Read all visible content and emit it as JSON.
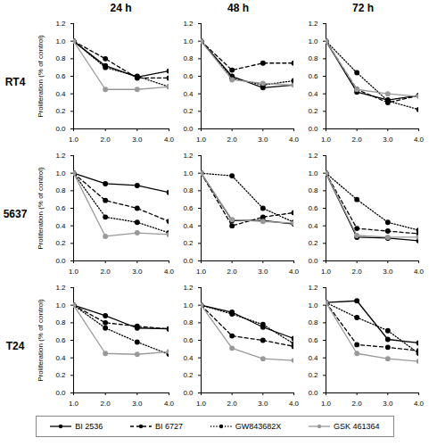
{
  "column_titles": [
    "24 h",
    "48 h",
    "72 h"
  ],
  "row_titles": [
    "RT4",
    "5637",
    "T24"
  ],
  "legend": "bottom",
  "chart_data": [
    {
      "type": "line",
      "ylabel": "Proliferation (% of control)",
      "x": [
        1,
        2,
        3,
        4
      ],
      "xlim": [
        1,
        4
      ],
      "xticks": [
        1,
        2,
        3,
        4
      ],
      "ylim": [
        0,
        1.2
      ],
      "yticks": [
        0,
        0.2,
        0.4,
        0.6,
        0.8,
        1,
        1.2
      ],
      "series": [
        {
          "name": "BI 2536",
          "color": "#000000",
          "line_style": "solid",
          "marker": "circle",
          "values": [
            1,
            0.72,
            0.59,
            0.66
          ]
        },
        {
          "name": "BI 6727",
          "color": "#000000",
          "line_style": "dashed",
          "marker": "circle",
          "values": [
            1,
            0.8,
            0.58,
            0.58
          ]
        },
        {
          "name": "GW843682X",
          "color": "#000000",
          "line_style": "dotted",
          "marker": "circle",
          "values": [
            1,
            0.7,
            0.6,
            0.48
          ]
        },
        {
          "name": "GSK 461364",
          "color": "#999999",
          "line_style": "solid",
          "marker": "circle",
          "values": [
            1,
            0.45,
            0.45,
            0.48
          ]
        }
      ]
    },
    {
      "type": "line",
      "x": [
        1,
        2,
        3,
        4
      ],
      "xlim": [
        1,
        4
      ],
      "xticks": [
        1,
        2,
        3,
        4
      ],
      "ylim": [
        0,
        1.2
      ],
      "yticks": [
        0,
        0.2,
        0.4,
        0.6,
        0.8,
        1,
        1.2
      ],
      "series": [
        {
          "name": "BI 2536",
          "color": "#000000",
          "line_style": "solid",
          "marker": "circle",
          "values": [
            1,
            0.6,
            0.47,
            0.5
          ]
        },
        {
          "name": "BI 6727",
          "color": "#000000",
          "line_style": "dashed",
          "marker": "circle",
          "values": [
            1,
            0.67,
            0.75,
            0.75
          ]
        },
        {
          "name": "GW843682X",
          "color": "#000000",
          "line_style": "dotted",
          "marker": "circle",
          "values": [
            1,
            0.58,
            0.5,
            0.55
          ]
        },
        {
          "name": "GSK 461364",
          "color": "#999999",
          "line_style": "solid",
          "marker": "circle",
          "values": [
            1,
            0.56,
            0.52,
            0.5
          ]
        }
      ]
    },
    {
      "type": "line",
      "x": [
        1,
        2,
        3,
        4
      ],
      "xlim": [
        1,
        4
      ],
      "xticks": [
        1,
        2,
        3,
        4
      ],
      "ylim": [
        0,
        1.2
      ],
      "yticks": [
        0,
        0.2,
        0.4,
        0.6,
        0.8,
        1,
        1.2
      ],
      "series": [
        {
          "name": "BI 2536",
          "color": "#000000",
          "line_style": "solid",
          "marker": "circle",
          "values": [
            1,
            0.42,
            0.33,
            0.38
          ]
        },
        {
          "name": "BI 6727",
          "color": "#000000",
          "line_style": "dashed",
          "marker": "circle",
          "values": [
            1,
            0.45,
            0.3,
            0.38
          ]
        },
        {
          "name": "GW843682X",
          "color": "#000000",
          "line_style": "dotted",
          "marker": "circle",
          "values": [
            1,
            0.64,
            0.32,
            0.22
          ]
        },
        {
          "name": "GSK 461364",
          "color": "#999999",
          "line_style": "solid",
          "marker": "circle",
          "values": [
            1,
            0.45,
            0.4,
            0.37
          ]
        }
      ]
    },
    {
      "type": "line",
      "ylabel": "Proliferation (% of control)",
      "x": [
        1,
        2,
        3,
        4
      ],
      "xlim": [
        1,
        4
      ],
      "xticks": [
        1,
        2,
        3,
        4
      ],
      "ylim": [
        0,
        1.2
      ],
      "yticks": [
        0,
        0.2,
        0.4,
        0.6,
        0.8,
        1,
        1.2
      ],
      "series": [
        {
          "name": "BI 2536",
          "color": "#000000",
          "line_style": "solid",
          "marker": "circle",
          "values": [
            1,
            0.88,
            0.86,
            0.78
          ]
        },
        {
          "name": "BI 6727",
          "color": "#000000",
          "line_style": "dashed",
          "marker": "circle",
          "values": [
            1,
            0.69,
            0.6,
            0.45
          ]
        },
        {
          "name": "GW843682X",
          "color": "#000000",
          "line_style": "dotted",
          "marker": "circle",
          "values": [
            1,
            0.5,
            0.44,
            0.32
          ]
        },
        {
          "name": "GSK 461364",
          "color": "#999999",
          "line_style": "solid",
          "marker": "circle",
          "values": [
            1,
            0.28,
            0.32,
            0.3
          ]
        }
      ]
    },
    {
      "type": "line",
      "x": [
        1,
        2,
        3,
        4
      ],
      "xlim": [
        1,
        4
      ],
      "xticks": [
        1,
        2,
        3,
        4
      ],
      "ylim": [
        0,
        1.2
      ],
      "yticks": [
        0,
        0.2,
        0.4,
        0.6,
        0.8,
        1,
        1.2
      ],
      "series": [
        {
          "name": "BI 2536",
          "color": "#000000",
          "line_style": "solid",
          "marker": "circle",
          "values": [
            1,
            0.46,
            0.46,
            0.42
          ]
        },
        {
          "name": "BI 6727",
          "color": "#000000",
          "line_style": "dashed",
          "marker": "circle",
          "values": [
            1,
            0.4,
            0.5,
            0.55
          ]
        },
        {
          "name": "GW843682X",
          "color": "#000000",
          "line_style": "dotted",
          "marker": "circle",
          "values": [
            1,
            0.97,
            0.6,
            0.44
          ]
        },
        {
          "name": "GSK 461364",
          "color": "#999999",
          "line_style": "solid",
          "marker": "circle",
          "values": [
            1,
            0.47,
            0.45,
            0.43
          ]
        }
      ]
    },
    {
      "type": "line",
      "x": [
        1,
        2,
        3,
        4
      ],
      "xlim": [
        1,
        4
      ],
      "xticks": [
        1,
        2,
        3,
        4
      ],
      "ylim": [
        0,
        1.2
      ],
      "yticks": [
        0,
        0.2,
        0.4,
        0.6,
        0.8,
        1,
        1.2
      ],
      "series": [
        {
          "name": "BI 2536",
          "color": "#000000",
          "line_style": "solid",
          "marker": "circle",
          "values": [
            1,
            0.27,
            0.26,
            0.23
          ]
        },
        {
          "name": "BI 6727",
          "color": "#000000",
          "line_style": "dashed",
          "marker": "circle",
          "values": [
            1,
            0.37,
            0.34,
            0.31
          ]
        },
        {
          "name": "GW843682X",
          "color": "#000000",
          "line_style": "dotted",
          "marker": "circle",
          "values": [
            1,
            0.7,
            0.44,
            0.35
          ]
        },
        {
          "name": "GSK 461364",
          "color": "#999999",
          "line_style": "solid",
          "marker": "circle",
          "values": [
            1,
            0.29,
            0.27,
            0.27
          ]
        }
      ]
    },
    {
      "type": "line",
      "ylabel": "Proliferation (% of control)",
      "x": [
        1,
        2,
        3,
        4
      ],
      "xlim": [
        1,
        4
      ],
      "xticks": [
        1,
        2,
        3,
        4
      ],
      "ylim": [
        0,
        1.2
      ],
      "yticks": [
        0,
        0.2,
        0.4,
        0.6,
        0.8,
        1,
        1.2
      ],
      "series": [
        {
          "name": "BI 2536",
          "color": "#000000",
          "line_style": "solid",
          "marker": "circle",
          "values": [
            1,
            0.88,
            0.74,
            0.73
          ]
        },
        {
          "name": "BI 6727",
          "color": "#000000",
          "line_style": "dashed",
          "marker": "circle",
          "values": [
            1,
            0.8,
            0.76,
            0.73
          ]
        },
        {
          "name": "GW843682X",
          "color": "#000000",
          "line_style": "dotted",
          "marker": "circle",
          "values": [
            1,
            0.74,
            0.58,
            0.44
          ]
        },
        {
          "name": "GSK 461364",
          "color": "#999999",
          "line_style": "solid",
          "marker": "circle",
          "values": [
            1,
            0.45,
            0.44,
            0.47
          ]
        }
      ]
    },
    {
      "type": "line",
      "x": [
        1,
        2,
        3,
        4
      ],
      "xlim": [
        1,
        4
      ],
      "xticks": [
        1,
        2,
        3,
        4
      ],
      "ylim": [
        0,
        1.2
      ],
      "yticks": [
        0,
        0.2,
        0.4,
        0.6,
        0.8,
        1,
        1.2
      ],
      "series": [
        {
          "name": "BI 2536",
          "color": "#000000",
          "line_style": "solid",
          "marker": "circle",
          "values": [
            1,
            0.92,
            0.75,
            0.62
          ]
        },
        {
          "name": "BI 6727",
          "color": "#000000",
          "line_style": "dashed",
          "marker": "circle",
          "values": [
            1,
            0.65,
            0.6,
            0.53
          ]
        },
        {
          "name": "GW843682X",
          "color": "#000000",
          "line_style": "dotted",
          "marker": "circle",
          "values": [
            1,
            0.9,
            0.78,
            0.56
          ]
        },
        {
          "name": "GSK 461364",
          "color": "#999999",
          "line_style": "solid",
          "marker": "circle",
          "values": [
            1,
            0.51,
            0.39,
            0.37
          ]
        }
      ]
    },
    {
      "type": "line",
      "x": [
        1,
        2,
        3,
        4
      ],
      "xlim": [
        1,
        4
      ],
      "xticks": [
        1,
        2,
        3,
        4
      ],
      "ylim": [
        0,
        1.2
      ],
      "yticks": [
        0,
        0.2,
        0.4,
        0.6,
        0.8,
        1,
        1.2
      ],
      "series": [
        {
          "name": "BI 2536",
          "color": "#000000",
          "line_style": "solid",
          "marker": "circle",
          "values": [
            1.03,
            1.05,
            0.61,
            0.57
          ]
        },
        {
          "name": "BI 6727",
          "color": "#000000",
          "line_style": "dashed",
          "marker": "circle",
          "values": [
            1.03,
            0.55,
            0.52,
            0.48
          ]
        },
        {
          "name": "GW843682X",
          "color": "#000000",
          "line_style": "dotted",
          "marker": "circle",
          "values": [
            1.03,
            0.86,
            0.71,
            0.45
          ]
        },
        {
          "name": "GSK 461364",
          "color": "#999999",
          "line_style": "solid",
          "marker": "circle",
          "values": [
            1.03,
            0.45,
            0.39,
            0.36
          ]
        }
      ]
    }
  ]
}
